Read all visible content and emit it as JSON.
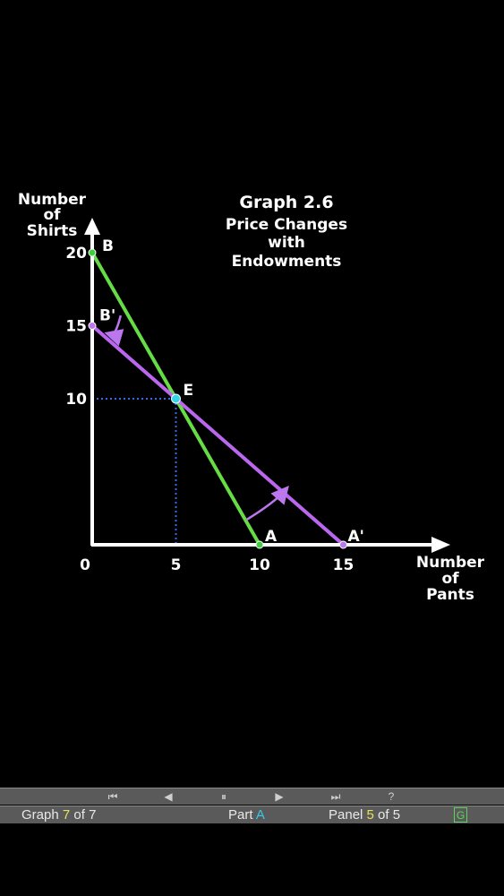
{
  "chart_data": {
    "type": "line",
    "title": "Graph 2.6",
    "subtitle_lines": [
      "Price Changes",
      "with",
      "Endowments"
    ],
    "ylabel_lines": [
      "Number",
      "of",
      "Shirts"
    ],
    "xlabel_lines": [
      "Number",
      "of",
      "Pants"
    ],
    "xlim": [
      0,
      15
    ],
    "ylim": [
      0,
      20
    ],
    "x_ticks": [
      "0",
      "5",
      "10",
      "15"
    ],
    "y_ticks": [
      "20",
      "15",
      "10"
    ],
    "series": [
      {
        "points": [
          [
            0,
            20
          ],
          [
            10,
            0
          ]
        ],
        "color": "#66dd44"
      },
      {
        "points": [
          [
            0,
            15
          ],
          [
            15,
            0
          ]
        ],
        "color": "#bb66ee"
      }
    ],
    "points": [
      {
        "label": "B",
        "x": 0,
        "y": 20,
        "color": "#3ecf3e",
        "label_color": "#66ee44"
      },
      {
        "label": "A",
        "x": 10,
        "y": 0,
        "color": "#3ecf3e",
        "label_color": "#66ee44"
      },
      {
        "label": "B'",
        "x": 0,
        "y": 15,
        "color": "#bb77ee",
        "label_color": "#bb77ee"
      },
      {
        "label": "A'",
        "x": 15,
        "y": 0,
        "color": "#bb77ee",
        "label_color": "#bb77ee"
      },
      {
        "label": "E",
        "x": 5,
        "y": 10,
        "color": "#33d6e8",
        "label_color": "#33d6e8"
      }
    ],
    "guides": {
      "x": 5,
      "y": 10,
      "color": "#2f6cf0"
    },
    "colors": {
      "axis": "#ffffff",
      "title": "#44e0b8",
      "background": "#000000"
    }
  },
  "nav": {
    "first": "⏮",
    "prev": "◀",
    "pause": "⏸",
    "next": "▶",
    "last": "⏭",
    "help": "?"
  },
  "status": {
    "graph_prefix": "Graph ",
    "graph_num": "7",
    "graph_mid": " of ",
    "graph_total": "7",
    "part_prefix": "Part ",
    "part_value": "A",
    "panel_prefix": "Panel ",
    "panel_num": "5",
    "panel_mid": " of ",
    "panel_total": "5",
    "g_button": "G"
  }
}
